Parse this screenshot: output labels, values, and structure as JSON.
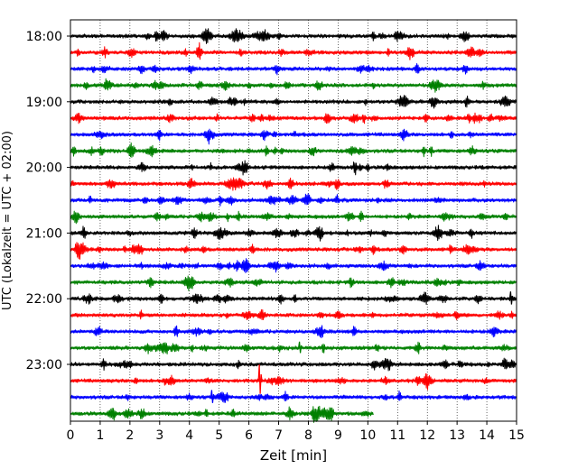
{
  "chart_data": {
    "type": "line",
    "title": "",
    "xlabel": "Zeit  [min]",
    "ylabel": "UTC (Lokalzeit = UTC + 02:00)",
    "xlim": [
      0,
      15
    ],
    "x_ticks": [
      "0",
      "1",
      "2",
      "3",
      "4",
      "5",
      "6",
      "7",
      "8",
      "9",
      "10",
      "11",
      "12",
      "13",
      "14",
      "15"
    ],
    "y_ticks": [
      "18:00",
      "19:00",
      "20:00",
      "21:00",
      "22:00",
      "23:00"
    ],
    "grid": "vertical dotted",
    "trace_interval_minutes": 15,
    "first_trace_start": "18:00",
    "color_cycle": [
      "#000000",
      "#ff0000",
      "#0000ff",
      "#008000"
    ],
    "series": [
      {
        "start": "18:00",
        "end_min": 15
      },
      {
        "start": "18:15",
        "end_min": 15
      },
      {
        "start": "18:30",
        "end_min": 15
      },
      {
        "start": "18:45",
        "end_min": 15
      },
      {
        "start": "19:00",
        "end_min": 15
      },
      {
        "start": "19:15",
        "end_min": 15
      },
      {
        "start": "19:30",
        "end_min": 15
      },
      {
        "start": "19:45",
        "end_min": 15
      },
      {
        "start": "20:00",
        "end_min": 15
      },
      {
        "start": "20:15",
        "end_min": 15
      },
      {
        "start": "20:30",
        "end_min": 15
      },
      {
        "start": "20:45",
        "end_min": 15
      },
      {
        "start": "21:00",
        "end_min": 15
      },
      {
        "start": "21:15",
        "end_min": 15
      },
      {
        "start": "21:30",
        "end_min": 15
      },
      {
        "start": "21:45",
        "end_min": 15
      },
      {
        "start": "22:00",
        "end_min": 15
      },
      {
        "start": "22:15",
        "end_min": 15
      },
      {
        "start": "22:30",
        "end_min": 15
      },
      {
        "start": "22:45",
        "end_min": 15
      },
      {
        "start": "23:00",
        "end_min": 15
      },
      {
        "start": "23:15",
        "end_min": 15
      },
      {
        "start": "23:30",
        "end_min": 15
      },
      {
        "start": "23:45",
        "end_min": 10.2
      }
    ]
  }
}
